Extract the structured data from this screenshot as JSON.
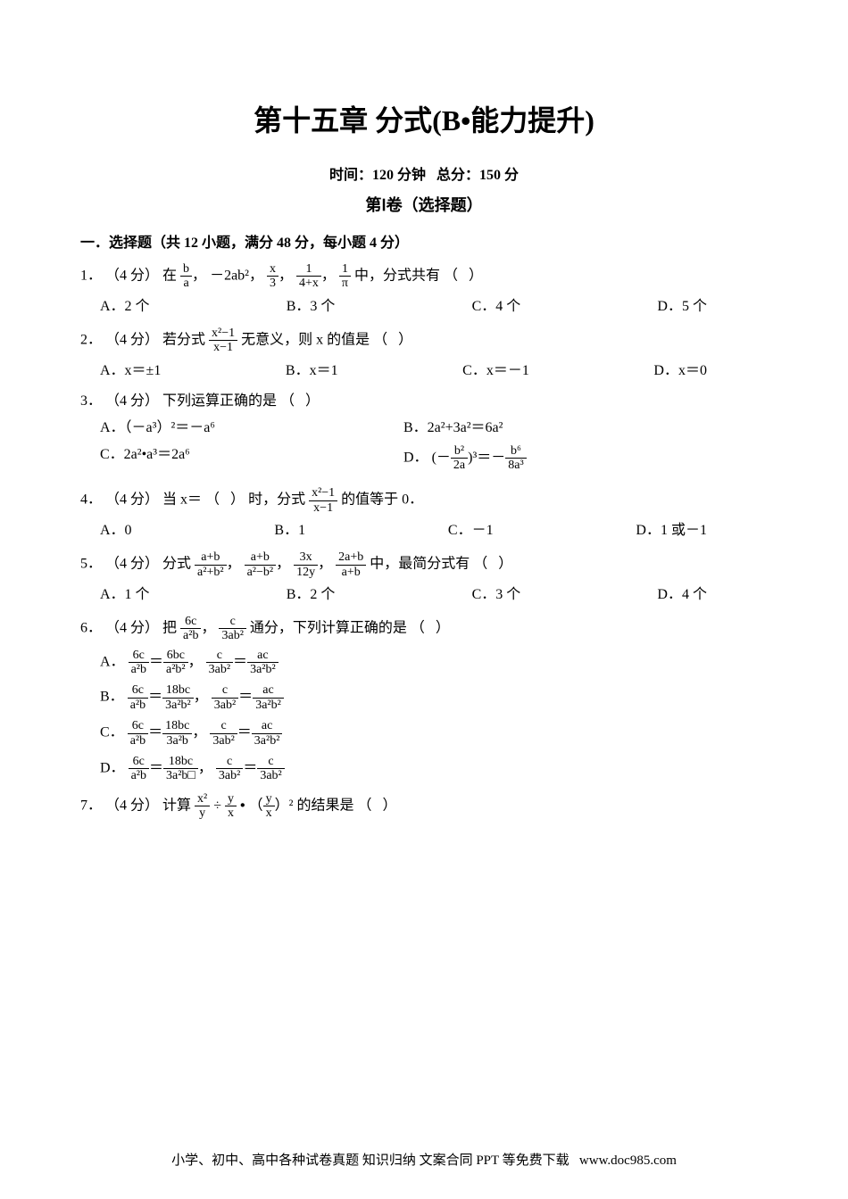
{
  "meta": {
    "chapter_title": "第十五章 分式(B•能力提升)",
    "time_label": "时间：",
    "time_value": "120 分钟",
    "gap": "   ",
    "score_label": "总分：",
    "score_value": "150 分",
    "volume": "第Ⅰ卷（选择题）",
    "section_mc": "一．选择题（共 12 小题，满分 48 分，每小题 4 分）"
  },
  "points_prefix": "（4 分）",
  "blank_paren": "（   ）",
  "questions": {
    "q1": {
      "num": "1．",
      "stem_pre": "在",
      "stem_post": "中，分式共有",
      "list_sep": "，",
      "term2": "－2ab²",
      "options": {
        "A": "A．2 个",
        "B": "B．3 个",
        "C": "C．4 个",
        "D": "D．5 个"
      }
    },
    "q2": {
      "num": "2．",
      "stem_pre": "若分式",
      "stem_post": "无意义，则 x 的值是",
      "options": {
        "A": "A．x＝±1",
        "B": "B．x＝1",
        "C": "C．x＝－1",
        "D": "D．x＝0"
      }
    },
    "q3": {
      "num": "3．",
      "stem": "下列运算正确的是",
      "options": {
        "A": "A．（－a³）²＝－a⁶",
        "B": "B．2a²+3a²＝6a²",
        "C": "C．2a²•a³＝2a⁶",
        "D_pre": "D．",
        "D_lhs_pre": "(－",
        "D_lhs_num": "b²",
        "D_lhs_den": "2a",
        "D_lhs_exp": ")³＝－",
        "D_rhs_num": "b⁶",
        "D_rhs_den": "8a³"
      }
    },
    "q4": {
      "num": "4．",
      "stem_pre": "当 x＝",
      "stem_mid": "时，分式",
      "stem_post": "的值等于 0．",
      "options": {
        "A": "A．0",
        "B": "B．1",
        "C": "C．－1",
        "D": "D．1 或－1"
      }
    },
    "q5": {
      "num": "5．",
      "stem_pre": "分式",
      "stem_post": "中，最简分式有",
      "options": {
        "A": "A．1 个",
        "B": "B．2 个",
        "C": "C．3 个",
        "D": "D．4 个"
      }
    },
    "q6": {
      "num": "6．",
      "stem_pre": "把",
      "stem_post": "通分，下列计算正确的是",
      "options": {
        "A_pre": "A．",
        "B_pre": "B．",
        "C_pre": "C．",
        "D_pre": "D．"
      }
    },
    "q7": {
      "num": "7．",
      "stem_pre": "计算",
      "stem_post": "的结果是"
    }
  },
  "fracs": {
    "b_over_a": {
      "num": "b",
      "den": "a"
    },
    "x_over_3": {
      "num": "x",
      "den": "3"
    },
    "one_over_4plusx": {
      "num": "1",
      "den": "4+x"
    },
    "one_over_pi": {
      "num": "1",
      "den": "π"
    },
    "x2m1_over_xm1": {
      "num": "x²−1",
      "den": "x−1"
    },
    "aplusb_over_a2plusb2": {
      "num": "a+b",
      "den": "a²+b²"
    },
    "aplusb_over_a2mb2": {
      "num": "a+b",
      "den": "a²−b²"
    },
    "3x_over_12y": {
      "num": "3x",
      "den": "12y"
    },
    "2aplusb_over_aplusb": {
      "num": "2a+b",
      "den": "a+b"
    },
    "6c_over_a2b": {
      "num": "6c",
      "den": "a²b"
    },
    "c_over_3ab2": {
      "num": "c",
      "den": "3ab²"
    },
    "6bc_over_a2b2": {
      "num": "6bc",
      "den": "a²b²"
    },
    "ac_over_3a2b2": {
      "num": "ac",
      "den": "3a²b²"
    },
    "18bc_over_3a2b2": {
      "num": "18bc",
      "den": "3a²b²"
    },
    "18bc_over_3a2b": {
      "num": "18bc",
      "den": "3a²b"
    },
    "18bc_over_3a2b_box": {
      "num": "18bc",
      "den": "3a²b□"
    },
    "c_over_3ab2_r": {
      "num": "c",
      "den": "3ab²"
    },
    "x2_over_y": {
      "num": "x²",
      "den": "y"
    },
    "y_over_x": {
      "num": "y",
      "den": "x"
    }
  },
  "footer": {
    "text": "小学、初中、高中各种试卷真题 知识归纳 文案合同 PPT 等免费下载   ",
    "url": "www.doc985.com"
  },
  "colors": {
    "text": "#000000",
    "background": "#ffffff"
  },
  "typography": {
    "title_fontsize_pt": 24,
    "body_fontsize_pt": 12,
    "font_family": "SimSun"
  }
}
